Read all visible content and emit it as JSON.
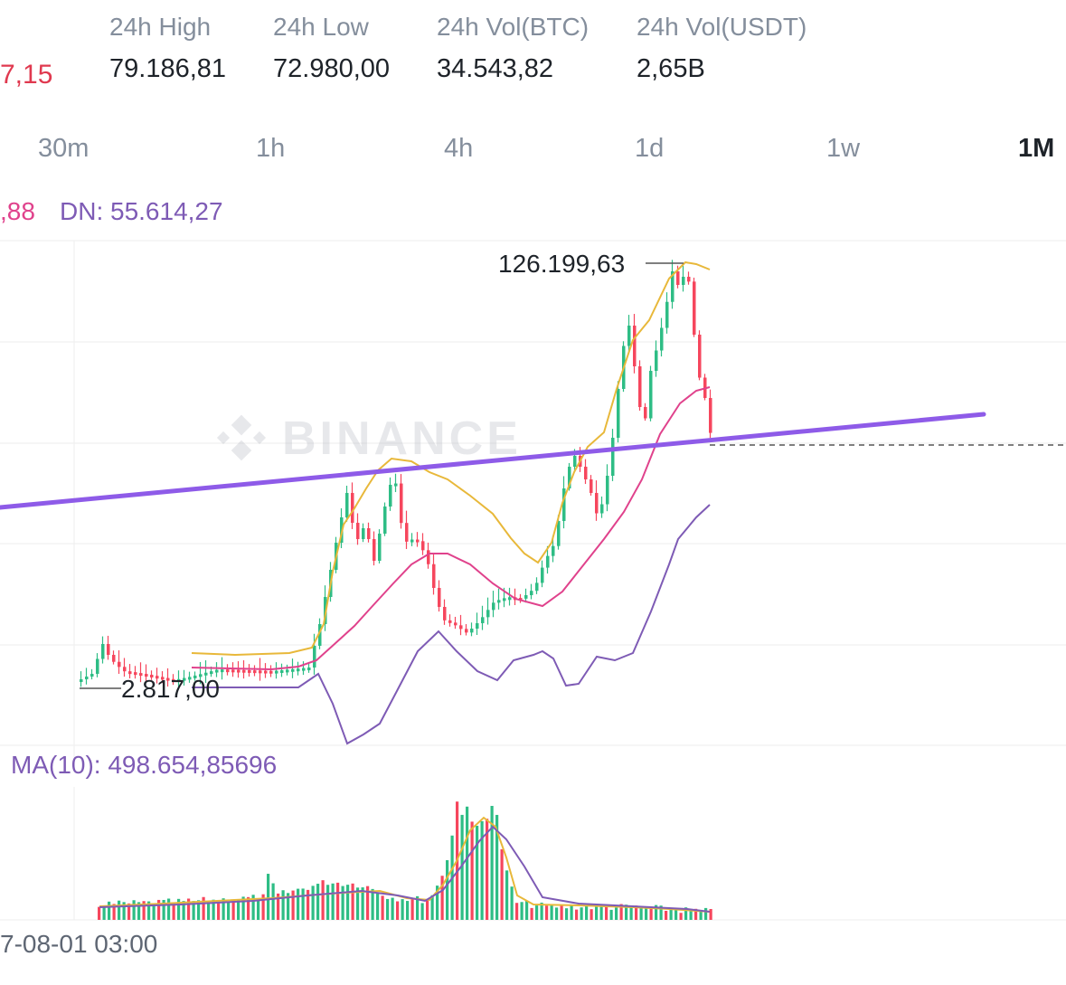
{
  "header": {
    "last_price_partial": "7,15",
    "stats": [
      {
        "label": "24h High",
        "value": "79.186,81"
      },
      {
        "label": "24h Low",
        "value": "72.980,00"
      },
      {
        "label": "24h Vol(BTC)",
        "value": "34.543,82"
      },
      {
        "label": "24h Vol(USDT)",
        "value": "2,65B"
      }
    ]
  },
  "timeframes": [
    {
      "label": "30m",
      "active": false
    },
    {
      "label": "1h",
      "active": false
    },
    {
      "label": "4h",
      "active": false
    },
    {
      "label": "1d",
      "active": false
    },
    {
      "label": "1w",
      "active": false
    },
    {
      "label": "1M",
      "active": true
    }
  ],
  "indicators": {
    "boll_partial": ",88",
    "boll_dn": "DN: 55.614,27",
    "volume_ma": "MA(10): 498.654,85696"
  },
  "chart": {
    "watermark": "BINANCE",
    "max_label": "126.199,63",
    "min_label": "2.817,00",
    "x_axis_label": "7-08-01 03:00",
    "colors": {
      "up": "#2ebd85",
      "down": "#f6465d",
      "boll_upper": "#e8b83a",
      "boll_mid": "#e0428c",
      "boll_lower": "#7e5bb5",
      "trendline": "#8e5be8",
      "grid": "#eeeeee"
    }
  }
}
